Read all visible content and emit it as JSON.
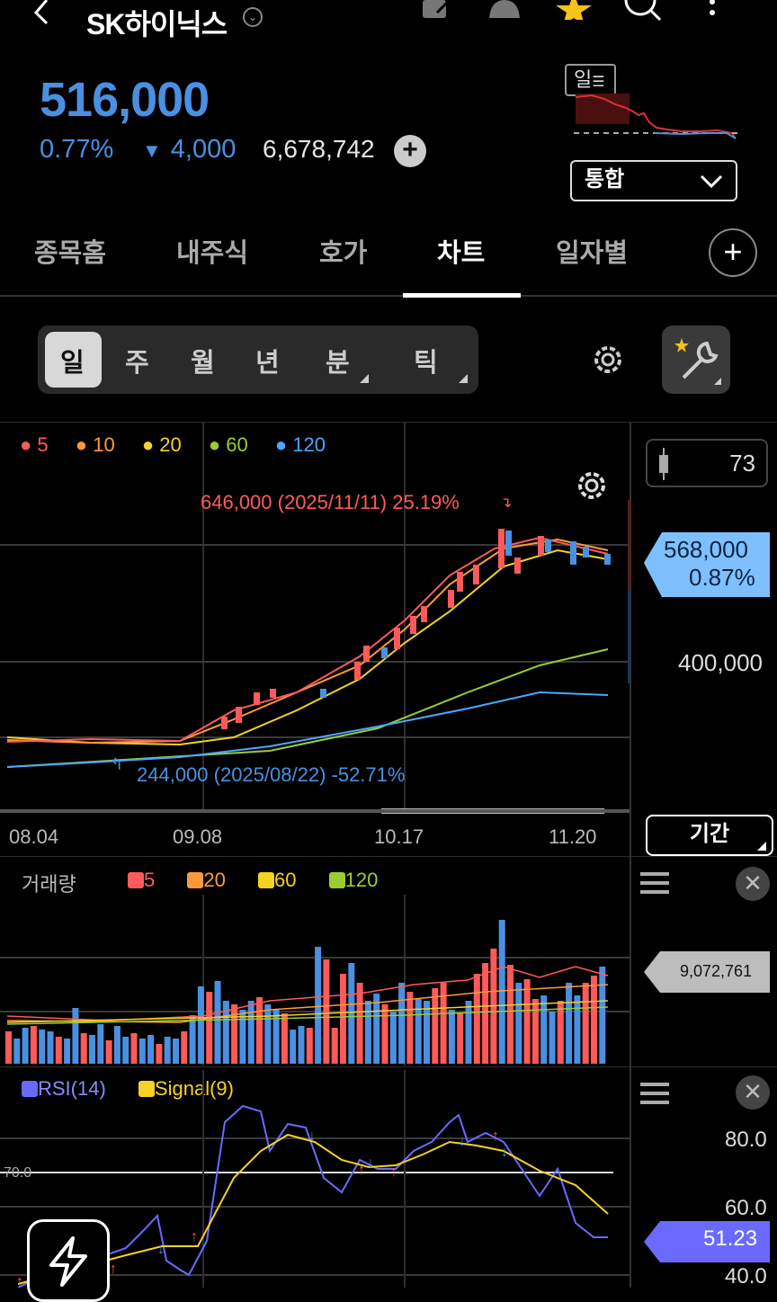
{
  "header": {
    "stock_name": "SK하이닉스",
    "back_icon": "chevron-left-icon",
    "icons": [
      "memo-icon",
      "bell-icon",
      "star-icon",
      "search-icon",
      "more-icon"
    ]
  },
  "quote": {
    "price": "516,000",
    "change_pct": "0.77%",
    "change_arrow": "▼",
    "change_amount": "4,000",
    "volume": "6,678,742",
    "period_badge": "일",
    "market_select": "통합"
  },
  "tabs": [
    {
      "label": "종목홈"
    },
    {
      "label": "내주식"
    },
    {
      "label": "호가"
    },
    {
      "label": "차트",
      "active": true
    },
    {
      "label": "일자별"
    }
  ],
  "periods": [
    "일",
    "주",
    "월",
    "년",
    "분",
    "틱"
  ],
  "chart": {
    "ma_legend": [
      {
        "label": "5",
        "color": "#ff5a5a"
      },
      {
        "label": "10",
        "color": "#ff9a3c"
      },
      {
        "label": "20",
        "color": "#f5d223"
      },
      {
        "label": "60",
        "color": "#9acd32"
      },
      {
        "label": "120",
        "color": "#4aa8ff"
      }
    ],
    "candle_count": "73",
    "high_annotation": "646,000 (2025/11/11) 25.19%",
    "low_annotation": "244,000 (2025/08/22) -52.71%",
    "current_tag_price": "568,000",
    "current_tag_pct": "0.87%",
    "axis_level": "400,000",
    "dates": [
      "08.04",
      "09.08",
      "10.17",
      "11.20"
    ],
    "period_button": "기간"
  },
  "volume_panel": {
    "title": "거래량",
    "legend": [
      {
        "label": "5",
        "color": "#ff5a5a"
      },
      {
        "label": "20",
        "color": "#ff9a3c"
      },
      {
        "label": "60",
        "color": "#f5d223"
      },
      {
        "label": "120",
        "color": "#9acd32"
      }
    ],
    "current_tag": "9,072,761"
  },
  "rsi_panel": {
    "legend": [
      {
        "label": "RSI(14)",
        "color": "#6a6aff"
      },
      {
        "label": "Signal(9)",
        "color": "#f5d223"
      }
    ],
    "level_label": "70.0",
    "axis": [
      "80.0",
      "60.0",
      "40.0"
    ],
    "current_tag": "51.23"
  }
}
